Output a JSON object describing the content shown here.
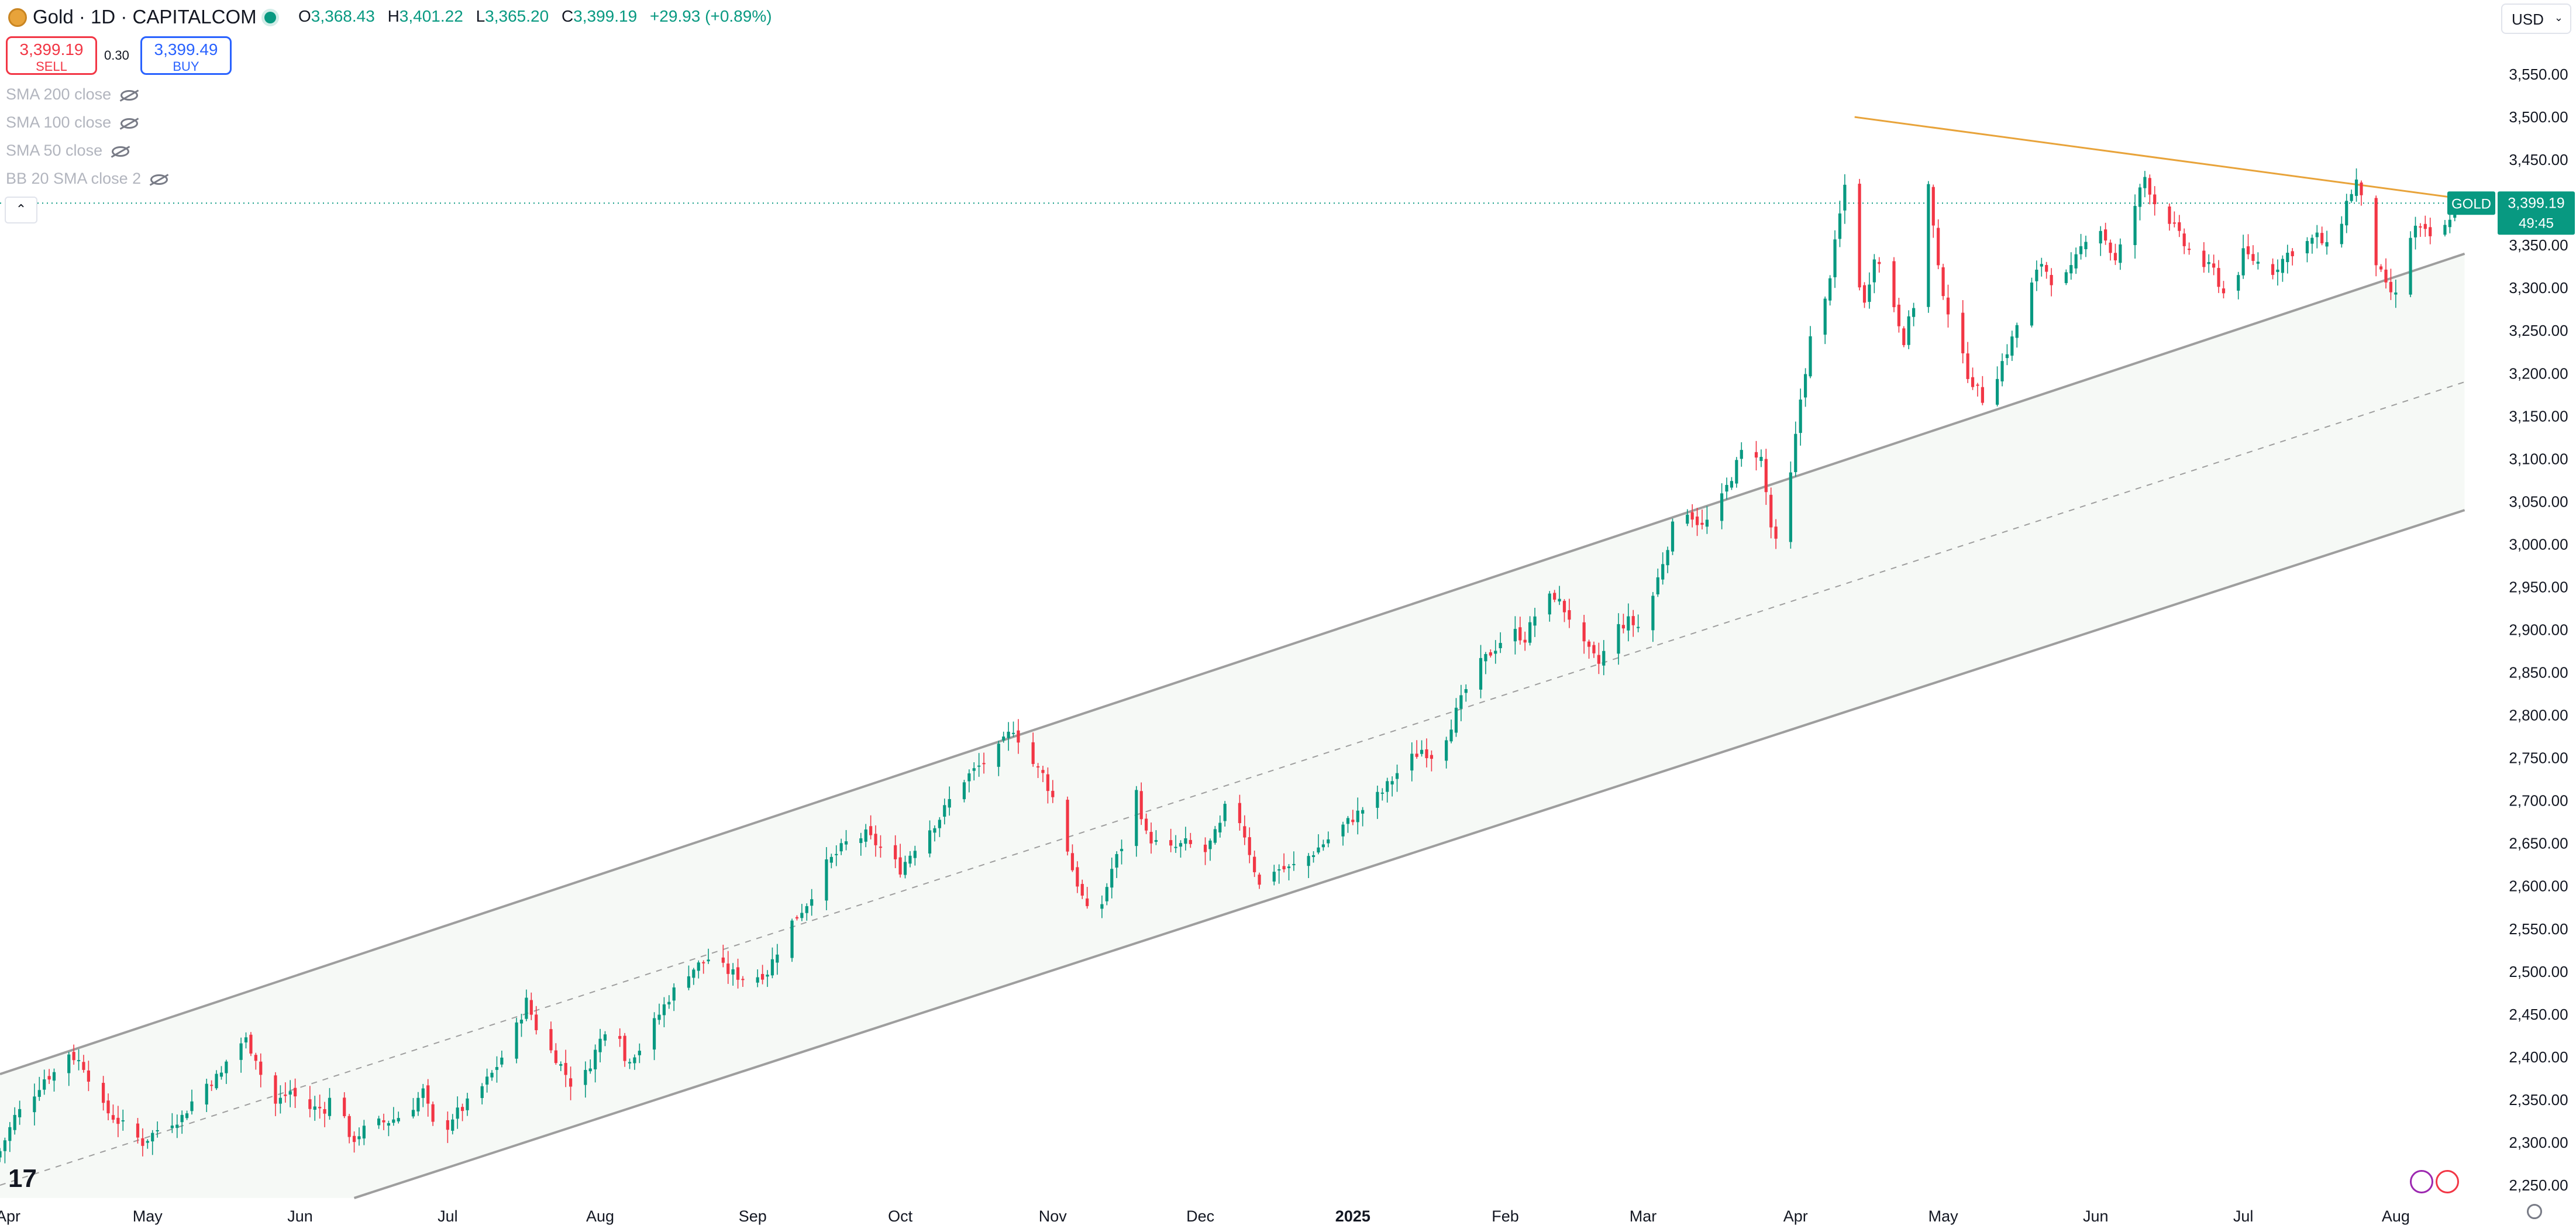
{
  "header": {
    "symbol_title": "Gold · 1D · CAPITALCOM",
    "ohlc": {
      "o_label": "O",
      "o": "3,368.43",
      "h_label": "H",
      "h": "3,401.22",
      "l_label": "L",
      "l": "3,365.20",
      "c_label": "C",
      "c": "3,399.19",
      "change": "+29.93 (+0.89%)"
    },
    "sell_price": "3,399.19",
    "sell_label": "SELL",
    "spread": "0.30",
    "buy_price": "3,399.49",
    "buy_label": "BUY",
    "currency": "USD"
  },
  "indicators": [
    "SMA 200 close",
    "SMA 100 close",
    "SMA 50 close",
    "BB 20 SMA close 2"
  ],
  "price_tag": {
    "symbol": "GOLD",
    "price": "3,399.19",
    "countdown": "49:45"
  },
  "colors": {
    "up": "#089981",
    "down": "#f23645",
    "trendline": "#e8a33a",
    "channel": "#9e9e9e",
    "channel_fill": "#eef4ee"
  },
  "icons": [
    "gold-coin-icon",
    "live-dot-icon",
    "eye-off-icon",
    "chevron-up-icon",
    "chevron-down-icon",
    "tradingview-logo-icon",
    "lightning-icon",
    "flag-icon",
    "gear-icon"
  ],
  "chart_data": {
    "type": "candlestick",
    "title": "Gold · 1D · CAPITALCOM",
    "ylim": [
      2235,
      3590
    ],
    "y_ticks": [
      2250,
      2300,
      2350,
      2400,
      2450,
      2500,
      2550,
      2600,
      2650,
      2700,
      2750,
      2800,
      2850,
      2900,
      2950,
      3000,
      3050,
      3100,
      3150,
      3200,
      3250,
      3300,
      3350,
      3400,
      3450,
      3500,
      3550
    ],
    "y_tick_labels": [
      "2,250.00",
      "2,300.00",
      "2,350.00",
      "2,400.00",
      "2,450.00",
      "2,500.00",
      "2,550.00",
      "2,600.00",
      "2,650.00",
      "2,700.00",
      "2,750.00",
      "2,800.00",
      "2,850.00",
      "2,900.00",
      "2,950.00",
      "3,000.00",
      "3,050.00",
      "3,100.00",
      "3,150.00",
      "3,200.00",
      "3,250.00",
      "3,300.00",
      "3,350.00",
      "3,400.00",
      "3,450.00",
      "3,500.00",
      "3,550.00"
    ],
    "x_ticks": [
      {
        "label": "Apr",
        "day": 0
      },
      {
        "label": "May",
        "day": 30
      },
      {
        "label": "Jun",
        "day": 61
      },
      {
        "label": "Jul",
        "day": 91
      },
      {
        "label": "Aug",
        "day": 122
      },
      {
        "label": "Sep",
        "day": 153
      },
      {
        "label": "Oct",
        "day": 183
      },
      {
        "label": "Nov",
        "day": 214
      },
      {
        "label": "Dec",
        "day": 244
      },
      {
        "label": "2025",
        "day": 275
      },
      {
        "label": "Feb",
        "day": 306
      },
      {
        "label": "Mar",
        "day": 334
      },
      {
        "label": "Apr",
        "day": 365
      },
      {
        "label": "May",
        "day": 395
      },
      {
        "label": "Jun",
        "day": 426
      },
      {
        "label": "Jul",
        "day": 456
      },
      {
        "label": "Aug",
        "day": 487
      }
    ],
    "xlim_days": [
      0,
      502
    ],
    "anchors": [
      {
        "day": 0,
        "close": 2290
      },
      {
        "day": 3,
        "close": 2330
      },
      {
        "day": 6,
        "close": 2350
      },
      {
        "day": 9,
        "close": 2375
      },
      {
        "day": 12,
        "close": 2385
      },
      {
        "day": 14,
        "close": 2405
      },
      {
        "day": 17,
        "close": 2390
      },
      {
        "day": 21,
        "close": 2340
      },
      {
        "day": 25,
        "close": 2320
      },
      {
        "day": 29,
        "close": 2300
      },
      {
        "day": 33,
        "close": 2320
      },
      {
        "day": 37,
        "close": 2330
      },
      {
        "day": 41,
        "close": 2365
      },
      {
        "day": 45,
        "close": 2380
      },
      {
        "day": 47,
        "close": 2410
      },
      {
        "day": 50,
        "close": 2420
      },
      {
        "day": 52,
        "close": 2400
      },
      {
        "day": 55,
        "close": 2340
      },
      {
        "day": 59,
        "close": 2360
      },
      {
        "day": 62,
        "close": 2340
      },
      {
        "day": 66,
        "close": 2340
      },
      {
        "day": 69,
        "close": 2370
      },
      {
        "day": 71,
        "close": 2300
      },
      {
        "day": 75,
        "close": 2320
      },
      {
        "day": 79,
        "close": 2325
      },
      {
        "day": 83,
        "close": 2335
      },
      {
        "day": 86,
        "close": 2360
      },
      {
        "day": 89,
        "close": 2300
      },
      {
        "day": 92,
        "close": 2330
      },
      {
        "day": 96,
        "close": 2350
      },
      {
        "day": 100,
        "close": 2380
      },
      {
        "day": 104,
        "close": 2420
      },
      {
        "day": 107,
        "close": 2465
      },
      {
        "day": 110,
        "close": 2420
      },
      {
        "day": 113,
        "close": 2400
      },
      {
        "day": 116,
        "close": 2370
      },
      {
        "day": 119,
        "close": 2380
      },
      {
        "day": 122,
        "close": 2420
      },
      {
        "day": 125,
        "close": 2460
      },
      {
        "day": 127,
        "close": 2395
      },
      {
        "day": 130,
        "close": 2410
      },
      {
        "day": 133,
        "close": 2440
      },
      {
        "day": 136,
        "close": 2470
      },
      {
        "day": 140,
        "close": 2500
      },
      {
        "day": 144,
        "close": 2515
      },
      {
        "day": 148,
        "close": 2500
      },
      {
        "day": 152,
        "close": 2490
      },
      {
        "day": 156,
        "close": 2500
      },
      {
        "day": 160,
        "close": 2550
      },
      {
        "day": 164,
        "close": 2580
      },
      {
        "day": 168,
        "close": 2625
      },
      {
        "day": 172,
        "close": 2650
      },
      {
        "day": 176,
        "close": 2660
      },
      {
        "day": 180,
        "close": 2640
      },
      {
        "day": 183,
        "close": 2620
      },
      {
        "day": 187,
        "close": 2655
      },
      {
        "day": 191,
        "close": 2680
      },
      {
        "day": 195,
        "close": 2720
      },
      {
        "day": 199,
        "close": 2740
      },
      {
        "day": 203,
        "close": 2760
      },
      {
        "day": 206,
        "close": 2785
      },
      {
        "day": 209,
        "close": 2750
      },
      {
        "day": 212,
        "close": 2730
      },
      {
        "day": 215,
        "close": 2690
      },
      {
        "day": 218,
        "close": 2620
      },
      {
        "day": 221,
        "close": 2570
      },
      {
        "day": 223,
        "close": 2560
      },
      {
        "day": 226,
        "close": 2620
      },
      {
        "day": 229,
        "close": 2660
      },
      {
        "day": 231,
        "close": 2710
      },
      {
        "day": 233,
        "close": 2660
      },
      {
        "day": 237,
        "close": 2640
      },
      {
        "day": 241,
        "close": 2650
      },
      {
        "day": 245,
        "close": 2640
      },
      {
        "day": 248,
        "close": 2670
      },
      {
        "day": 250,
        "close": 2710
      },
      {
        "day": 253,
        "close": 2660
      },
      {
        "day": 256,
        "close": 2600
      },
      {
        "day": 259,
        "close": 2620
      },
      {
        "day": 262,
        "close": 2620
      },
      {
        "day": 265,
        "close": 2630
      },
      {
        "day": 269,
        "close": 2650
      },
      {
        "day": 273,
        "close": 2670
      },
      {
        "day": 277,
        "close": 2690
      },
      {
        "day": 281,
        "close": 2710
      },
      {
        "day": 285,
        "close": 2740
      },
      {
        "day": 289,
        "close": 2760
      },
      {
        "day": 292,
        "close": 2750
      },
      {
        "day": 295,
        "close": 2790
      },
      {
        "day": 298,
        "close": 2830
      },
      {
        "day": 301,
        "close": 2860
      },
      {
        "day": 304,
        "close": 2880
      },
      {
        "day": 307,
        "close": 2900
      },
      {
        "day": 310,
        "close": 2890
      },
      {
        "day": 313,
        "close": 2930
      },
      {
        "day": 316,
        "close": 2940
      },
      {
        "day": 319,
        "close": 2915
      },
      {
        "day": 322,
        "close": 2880
      },
      {
        "day": 325,
        "close": 2860
      },
      {
        "day": 328,
        "close": 2900
      },
      {
        "day": 331,
        "close": 2910
      },
      {
        "day": 334,
        "close": 2900
      },
      {
        "day": 337,
        "close": 2960
      },
      {
        "day": 340,
        "close": 3020
      },
      {
        "day": 343,
        "close": 3040
      },
      {
        "day": 346,
        "close": 3020
      },
      {
        "day": 349,
        "close": 3040
      },
      {
        "day": 352,
        "close": 3080
      },
      {
        "day": 355,
        "close": 3120
      },
      {
        "day": 358,
        "close": 3100
      },
      {
        "day": 360,
        "close": 3020
      },
      {
        "day": 362,
        "close": 2980
      },
      {
        "day": 364,
        "close": 3080
      },
      {
        "day": 366,
        "close": 3170
      },
      {
        "day": 368,
        "close": 3240
      },
      {
        "day": 370,
        "close": 3250
      },
      {
        "day": 373,
        "close": 3350
      },
      {
        "day": 375,
        "close": 3420
      },
      {
        "day": 377,
        "close": 3330
      },
      {
        "day": 379,
        "close": 3280
      },
      {
        "day": 381,
        "close": 3340
      },
      {
        "day": 384,
        "close": 3300
      },
      {
        "day": 387,
        "close": 3240
      },
      {
        "day": 390,
        "close": 3300
      },
      {
        "day": 392,
        "close": 3420
      },
      {
        "day": 394,
        "close": 3320
      },
      {
        "day": 397,
        "close": 3250
      },
      {
        "day": 400,
        "close": 3200
      },
      {
        "day": 402,
        "close": 3180
      },
      {
        "day": 404,
        "close": 3160
      },
      {
        "day": 406,
        "close": 3200
      },
      {
        "day": 409,
        "close": 3240
      },
      {
        "day": 412,
        "close": 3290
      },
      {
        "day": 415,
        "close": 3330
      },
      {
        "day": 418,
        "close": 3300
      },
      {
        "day": 421,
        "close": 3320
      },
      {
        "day": 424,
        "close": 3360
      },
      {
        "day": 427,
        "close": 3370
      },
      {
        "day": 430,
        "close": 3330
      },
      {
        "day": 433,
        "close": 3380
      },
      {
        "day": 436,
        "close": 3430
      },
      {
        "day": 438,
        "close": 3400
      },
      {
        "day": 441,
        "close": 3380
      },
      {
        "day": 444,
        "close": 3350
      },
      {
        "day": 447,
        "close": 3330
      },
      {
        "day": 450,
        "close": 3320
      },
      {
        "day": 453,
        "close": 3280
      },
      {
        "day": 456,
        "close": 3340
      },
      {
        "day": 459,
        "close": 3330
      },
      {
        "day": 462,
        "close": 3320
      },
      {
        "day": 465,
        "close": 3340
      },
      {
        "day": 468,
        "close": 3350
      },
      {
        "day": 471,
        "close": 3360
      },
      {
        "day": 474,
        "close": 3340
      },
      {
        "day": 477,
        "close": 3400
      },
      {
        "day": 479,
        "close": 3425
      },
      {
        "day": 481,
        "close": 3380
      },
      {
        "day": 483,
        "close": 3330
      },
      {
        "day": 485,
        "close": 3300
      },
      {
        "day": 487,
        "close": 3290
      },
      {
        "day": 489,
        "close": 3350
      },
      {
        "day": 491,
        "close": 3370
      },
      {
        "day": 494,
        "close": 3360
      },
      {
        "day": 497,
        "close": 3370
      },
      {
        "day": 499,
        "close": 3399
      }
    ],
    "trendlines": [
      {
        "name": "resistance",
        "color": "#e8a33a",
        "points": [
          {
            "day": 377,
            "price": 3500
          },
          {
            "day": 501,
            "price": 3404
          }
        ]
      },
      {
        "name": "channel-upper",
        "color": "#9e9e9e",
        "points": [
          {
            "day": 0,
            "price": 2380
          },
          {
            "day": 501,
            "price": 3340
          }
        ]
      },
      {
        "name": "channel-mid",
        "color": "#9e9e9e",
        "dashed": true,
        "points": [
          {
            "day": 0,
            "price": 2250
          },
          {
            "day": 501,
            "price": 3190
          }
        ]
      },
      {
        "name": "channel-lower",
        "color": "#9e9e9e",
        "points": [
          {
            "day": 72,
            "price": 2235
          },
          {
            "day": 501,
            "price": 3040
          }
        ]
      }
    ],
    "last_price": 3399.19
  }
}
